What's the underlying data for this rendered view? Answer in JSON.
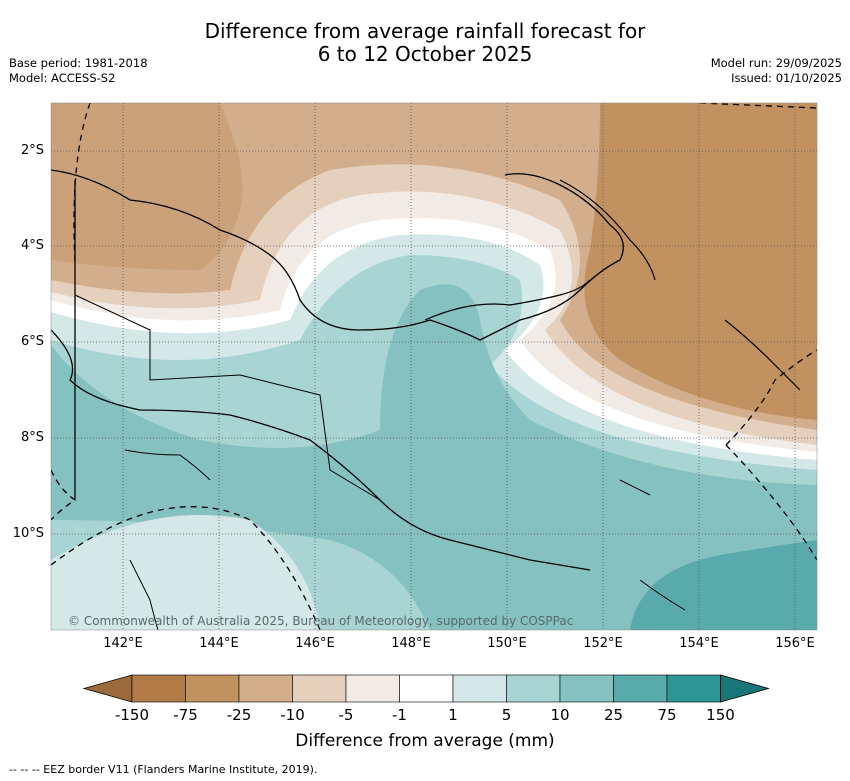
{
  "title_line1": "Difference from average rainfall forecast for",
  "title_line2": "6 to 12 October 2025",
  "base_period": "Base period: 1981-2018",
  "model": "Model: ACCESS-S2",
  "model_run": "Model run: 29/09/2025",
  "issued": "Issued: 01/10/2025",
  "lon_ticks": [
    "142°E",
    "144°E",
    "146°E",
    "148°E",
    "150°E",
    "152°E",
    "154°E",
    "156°E"
  ],
  "lat_ticks": [
    "2°S",
    "4°S",
    "6°S",
    "8°S",
    "10°S"
  ],
  "colorbar": {
    "title": "Difference from average (mm)",
    "labels": [
      "-150",
      "-75",
      "-25",
      "-10",
      "-5",
      "-1",
      "1",
      "5",
      "10",
      "25",
      "75",
      "150"
    ],
    "colors": [
      "#9c6a3a",
      "#b07b47",
      "#c1925f",
      "#d2ae8c",
      "#e5cfbd",
      "#f2ebe5",
      "#ffffff",
      "#d4e8e8",
      "#a9d4d4",
      "#86c1c1",
      "#59abab",
      "#2d9595",
      "#1a7676"
    ]
  },
  "copyright": "© Commonwealth of Australia 2025, Bureau of Meteorology, supported by COSPPac",
  "footer": "-- -- -- EEZ border V11 (Flanders Marine Institute, 2019)."
}
